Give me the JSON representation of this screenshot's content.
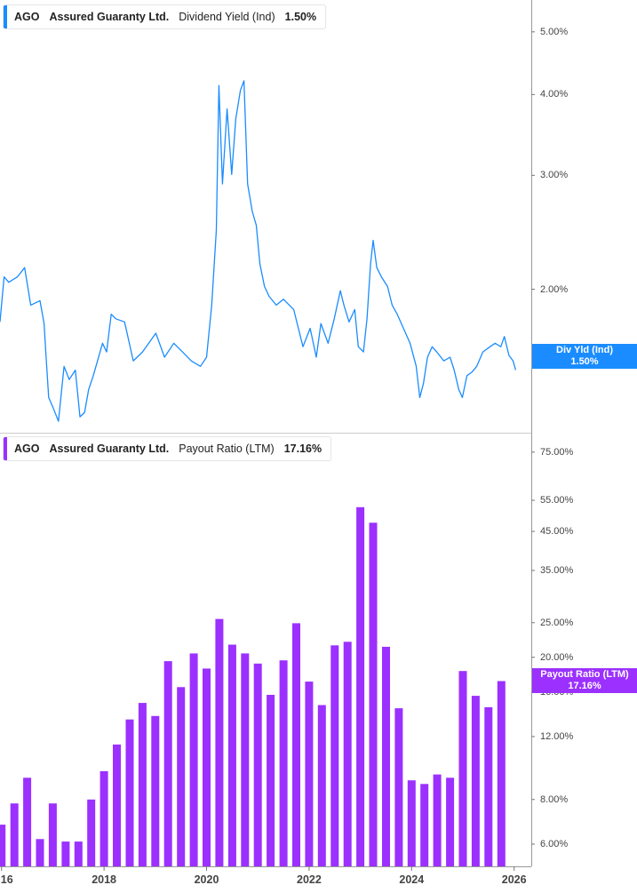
{
  "chart_data": [
    {
      "type": "line",
      "legend": {
        "ticker": "AGO",
        "company": "Assured Guaranty Ltd.",
        "metric": "Dividend Yield (Ind)",
        "value": "1.50%"
      },
      "current_label": {
        "name": "Div Yld (Ind)",
        "value": "1.50%"
      },
      "color": "#1a8cff",
      "y_scale": "log",
      "ylim": [
        1.2,
        5.6
      ],
      "y_ticks": [
        "5.00%",
        "4.00%",
        "3.00%",
        "2.00%"
      ],
      "y_tick_values": [
        5,
        4,
        3,
        2
      ],
      "series": [
        {
          "x": [
            2015.97,
            2016.05,
            2016.14,
            2016.31,
            2016.45,
            2016.57,
            2016.75,
            2016.83,
            2016.87,
            2016.92,
            2017.01,
            2017.11,
            2017.22,
            2017.32,
            2017.44,
            2017.53,
            2017.62,
            2017.7,
            2017.79,
            2017.97,
            2018.05,
            2018.14,
            2018.23,
            2018.4,
            2018.57,
            2018.75,
            2019.01,
            2019.18,
            2019.36,
            2019.53,
            2019.7,
            2019.88,
            2020.0,
            2020.1,
            2020.19,
            2020.24,
            2020.31,
            2020.4,
            2020.49,
            2020.57,
            2020.66,
            2020.73,
            2020.8,
            2020.89,
            2020.97,
            2021.04,
            2021.13,
            2021.22,
            2021.36,
            2021.5,
            2021.7,
            2021.88,
            2022.02,
            2022.14,
            2022.23,
            2022.37,
            2022.49,
            2022.61,
            2022.68,
            2022.78,
            2022.89,
            2022.96,
            2023.06,
            2023.13,
            2023.2,
            2023.25,
            2023.32,
            2023.41,
            2023.53,
            2023.62,
            2023.72,
            2023.84,
            2023.97,
            2024.09,
            2024.16,
            2024.23,
            2024.31,
            2024.4,
            2024.49,
            2024.63,
            2024.75,
            2024.83,
            2024.92,
            2024.99,
            2025.08,
            2025.18,
            2025.27,
            2025.39,
            2025.53,
            2025.63,
            2025.74,
            2025.81,
            2025.9,
            2025.98,
            2026.03
          ],
          "y": [
            1.78,
            2.09,
            2.05,
            2.09,
            2.16,
            1.89,
            1.92,
            1.77,
            1.57,
            1.36,
            1.31,
            1.25,
            1.52,
            1.45,
            1.5,
            1.27,
            1.29,
            1.4,
            1.47,
            1.65,
            1.6,
            1.83,
            1.8,
            1.78,
            1.55,
            1.6,
            1.71,
            1.57,
            1.65,
            1.6,
            1.55,
            1.52,
            1.57,
            1.89,
            2.47,
            4.13,
            2.91,
            3.8,
            3.01,
            3.67,
            4.06,
            4.2,
            2.91,
            2.64,
            2.51,
            2.19,
            2.02,
            1.95,
            1.89,
            1.93,
            1.86,
            1.63,
            1.74,
            1.57,
            1.77,
            1.65,
            1.8,
            1.99,
            1.89,
            1.78,
            1.86,
            1.63,
            1.6,
            1.8,
            2.19,
            2.38,
            2.16,
            2.09,
            2.02,
            1.89,
            1.83,
            1.74,
            1.65,
            1.52,
            1.36,
            1.43,
            1.57,
            1.63,
            1.6,
            1.55,
            1.57,
            1.5,
            1.4,
            1.36,
            1.47,
            1.49,
            1.52,
            1.6,
            1.63,
            1.65,
            1.63,
            1.69,
            1.58,
            1.55,
            1.5
          ]
        }
      ]
    },
    {
      "type": "bar",
      "legend": {
        "ticker": "AGO",
        "company": "Assured Guaranty Ltd.",
        "metric": "Payout Ratio (LTM)",
        "value": "17.16%"
      },
      "current_label": {
        "name": "Payout Ratio (LTM)",
        "value": "17.16%"
      },
      "color": "#9b30ff",
      "y_scale": "log",
      "ylim": [
        5.2,
        85
      ],
      "y_ticks": [
        "75.00%",
        "55.00%",
        "45.00%",
        "35.00%",
        "25.00%",
        "20.00%",
        "16.00%",
        "12.00%",
        "8.00%",
        "6.00%"
      ],
      "y_tick_values": [
        75,
        55,
        45,
        35,
        25,
        20,
        16,
        12,
        8,
        6
      ],
      "x": [
        2016.0,
        2016.25,
        2016.5,
        2016.75,
        2017.0,
        2017.25,
        2017.5,
        2017.75,
        2018.0,
        2018.25,
        2018.5,
        2018.75,
        2019.0,
        2019.25,
        2019.5,
        2019.75,
        2020.0,
        2020.25,
        2020.5,
        2020.75,
        2021.0,
        2021.25,
        2021.5,
        2021.75,
        2022.0,
        2022.25,
        2022.5,
        2022.75,
        2023.0,
        2023.25,
        2023.5,
        2023.75,
        2024.0,
        2024.25,
        2024.5,
        2024.75,
        2025.0,
        2025.25,
        2025.5,
        2025.75
      ],
      "values": [
        6.8,
        7.8,
        9.2,
        6.2,
        7.8,
        6.1,
        6.1,
        8.0,
        9.6,
        11.4,
        13.4,
        14.9,
        13.7,
        19.5,
        16.5,
        20.5,
        18.6,
        25.6,
        21.7,
        20.5,
        19.2,
        15.7,
        19.6,
        24.9,
        17.1,
        14.7,
        21.6,
        22.1,
        52.6,
        47.6,
        21.4,
        14.4,
        9.05,
        8.84,
        9.4,
        9.2,
        18.3,
        15.6,
        14.5,
        17.16
      ]
    }
  ],
  "x_axis": {
    "ticks": [
      "16",
      "2018",
      "2020",
      "2022",
      "2024",
      "2026"
    ],
    "tick_values": [
      2016,
      2018,
      2020,
      2022,
      2024,
      2026
    ],
    "range": [
      2015.97,
      2026.3
    ]
  }
}
